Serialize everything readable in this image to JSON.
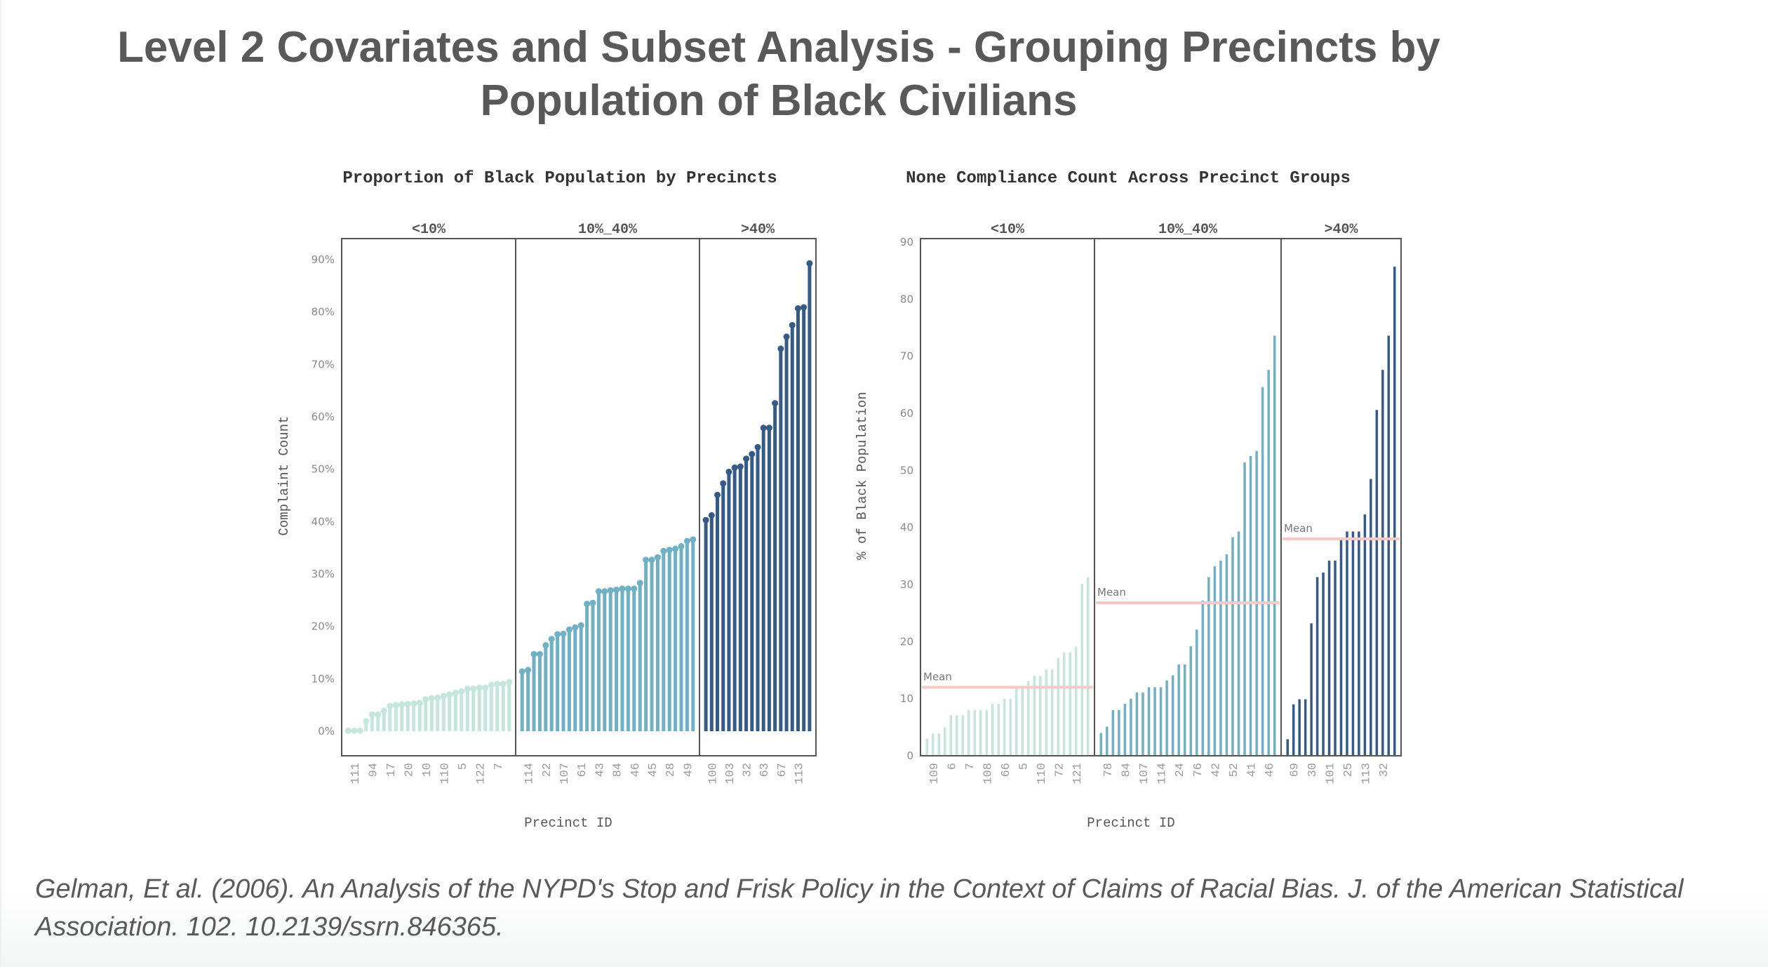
{
  "title": {
    "line1": "Level 2 Covariates and Subset Analysis - Grouping Precincts by",
    "line2": "Population of Black Civilians"
  },
  "citation": {
    "line1": "Gelman, Et al. (2006). An Analysis of the NYPD's Stop and Frisk Policy in the Context of Claims of Racial Bias. J. of the American Statistical",
    "line2": "Association. 102. 10.2139/ssrn.846365."
  },
  "colors": {
    "group_low": "#c5e6dc",
    "group_mid": "#6fb0c5",
    "group_high": "#355a88",
    "mean_line": "#f6c9c4",
    "frame": "#555555"
  },
  "chart_data": [
    {
      "type": "lollipop",
      "title": "Proportion of Black Population by Precincts",
      "xlabel": "Precinct ID",
      "ylabel": "Complaint Count",
      "ylim": [
        0,
        0.9
      ],
      "yticks": [
        "0%",
        "10%",
        "20%",
        "30%",
        "40%",
        "50%",
        "60%",
        "70%",
        "80%",
        "90%"
      ],
      "ytick_values": [
        0,
        0.1,
        0.2,
        0.3,
        0.4,
        0.5,
        0.6,
        0.7,
        0.8,
        0.9
      ],
      "grid": false,
      "groups": [
        {
          "name": "<10%",
          "values": [
            0.001,
            0.001,
            0.001,
            0.019,
            0.032,
            0.032,
            0.039,
            0.048,
            0.05,
            0.051,
            0.052,
            0.053,
            0.054,
            0.061,
            0.063,
            0.064,
            0.067,
            0.07,
            0.073,
            0.076,
            0.081,
            0.081,
            0.083,
            0.083,
            0.088,
            0.09,
            0.09,
            0.094
          ],
          "tick_labels": [
            {
              "index": 1,
              "label": "111"
            },
            {
              "index": 4,
              "label": "94"
            },
            {
              "index": 7,
              "label": "17"
            },
            {
              "index": 10,
              "label": "20"
            },
            {
              "index": 13,
              "label": "10"
            },
            {
              "index": 16,
              "label": "110"
            },
            {
              "index": 19,
              "label": "5"
            },
            {
              "index": 22,
              "label": "122"
            },
            {
              "index": 25,
              "label": "7"
            }
          ]
        },
        {
          "name": "10%_40%",
          "values": [
            0.114,
            0.117,
            0.147,
            0.147,
            0.164,
            0.176,
            0.185,
            0.186,
            0.194,
            0.198,
            0.202,
            0.243,
            0.245,
            0.267,
            0.267,
            0.269,
            0.27,
            0.272,
            0.272,
            0.272,
            0.283,
            0.327,
            0.327,
            0.332,
            0.344,
            0.346,
            0.348,
            0.353,
            0.363,
            0.366
          ],
          "tick_labels": [
            {
              "index": 1,
              "label": "114"
            },
            {
              "index": 4,
              "label": "22"
            },
            {
              "index": 7,
              "label": "107"
            },
            {
              "index": 10,
              "label": "61"
            },
            {
              "index": 13,
              "label": "43"
            },
            {
              "index": 16,
              "label": "84"
            },
            {
              "index": 19,
              "label": "46"
            },
            {
              "index": 22,
              "label": "45"
            },
            {
              "index": 25,
              "label": "28"
            },
            {
              "index": 28,
              "label": "49"
            }
          ]
        },
        {
          "name": ">40%",
          "values": [
            0.403,
            0.412,
            0.451,
            0.473,
            0.495,
            0.503,
            0.505,
            0.52,
            0.529,
            0.542,
            0.579,
            0.579,
            0.626,
            0.73,
            0.753,
            0.775,
            0.807,
            0.809,
            0.893
          ],
          "tick_labels": [
            {
              "index": 1,
              "label": "100"
            },
            {
              "index": 4,
              "label": "103"
            },
            {
              "index": 7,
              "label": "32"
            },
            {
              "index": 10,
              "label": "63"
            },
            {
              "index": 13,
              "label": "67"
            },
            {
              "index": 16,
              "label": "113"
            }
          ]
        }
      ]
    },
    {
      "type": "bar",
      "title": "None Compliance Count Across Precinct Groups",
      "xlabel": "Precinct ID",
      "ylabel": "% of Black Population",
      "ylim": [
        0,
        90
      ],
      "yticks": [
        "0",
        "10",
        "20",
        "30",
        "40",
        "50",
        "60",
        "70",
        "80",
        "90"
      ],
      "ytick_values": [
        0,
        10,
        20,
        30,
        40,
        50,
        60,
        70,
        80,
        90
      ],
      "grid": false,
      "mean_label": "Mean",
      "groups": [
        {
          "name": "<10%",
          "mean": 12.0,
          "values": [
            3.0,
            3.9,
            3.9,
            5.0,
            7.1,
            7.1,
            7.1,
            8.0,
            8.0,
            8.0,
            8.0,
            9.1,
            9.1,
            10.0,
            10.0,
            11.9,
            11.9,
            13.1,
            14.0,
            14.0,
            15.1,
            15.1,
            17.1,
            18.1,
            18.1,
            19.1,
            30.1,
            31.3
          ],
          "tick_labels": [
            {
              "index": 1,
              "label": "109"
            },
            {
              "index": 4,
              "label": "6"
            },
            {
              "index": 7,
              "label": "7"
            },
            {
              "index": 10,
              "label": "108"
            },
            {
              "index": 13,
              "label": "66"
            },
            {
              "index": 16,
              "label": "5"
            },
            {
              "index": 19,
              "label": "110"
            },
            {
              "index": 22,
              "label": "72"
            },
            {
              "index": 25,
              "label": "121"
            }
          ]
        },
        {
          "name": "10%_40%",
          "mean": 26.8,
          "values": [
            4.0,
            5.1,
            8.0,
            8.0,
            9.1,
            10.0,
            11.1,
            11.1,
            12.0,
            12.0,
            12.0,
            13.2,
            14.1,
            16.0,
            16.0,
            19.2,
            22.1,
            27.2,
            31.3,
            33.2,
            34.2,
            35.3,
            38.3,
            39.3,
            51.4,
            52.5,
            53.4,
            64.6,
            67.6,
            73.6
          ],
          "tick_labels": [
            {
              "index": 1,
              "label": "78"
            },
            {
              "index": 4,
              "label": "84"
            },
            {
              "index": 7,
              "label": "107"
            },
            {
              "index": 10,
              "label": "114"
            },
            {
              "index": 13,
              "label": "24"
            },
            {
              "index": 16,
              "label": "76"
            },
            {
              "index": 19,
              "label": "42"
            },
            {
              "index": 22,
              "label": "52"
            },
            {
              "index": 25,
              "label": "41"
            },
            {
              "index": 28,
              "label": "46"
            }
          ]
        },
        {
          "name": ">40%",
          "mean": 38.0,
          "values": [
            2.9,
            9.0,
            9.9,
            9.9,
            23.2,
            31.3,
            32.1,
            34.2,
            34.2,
            38.1,
            39.3,
            39.3,
            39.3,
            42.3,
            48.5,
            60.6,
            67.6,
            73.6,
            85.7
          ],
          "tick_labels": [
            {
              "index": 1,
              "label": "69"
            },
            {
              "index": 4,
              "label": "30"
            },
            {
              "index": 7,
              "label": "101"
            },
            {
              "index": 10,
              "label": "25"
            },
            {
              "index": 13,
              "label": "113"
            },
            {
              "index": 16,
              "label": "32"
            }
          ]
        }
      ]
    }
  ]
}
